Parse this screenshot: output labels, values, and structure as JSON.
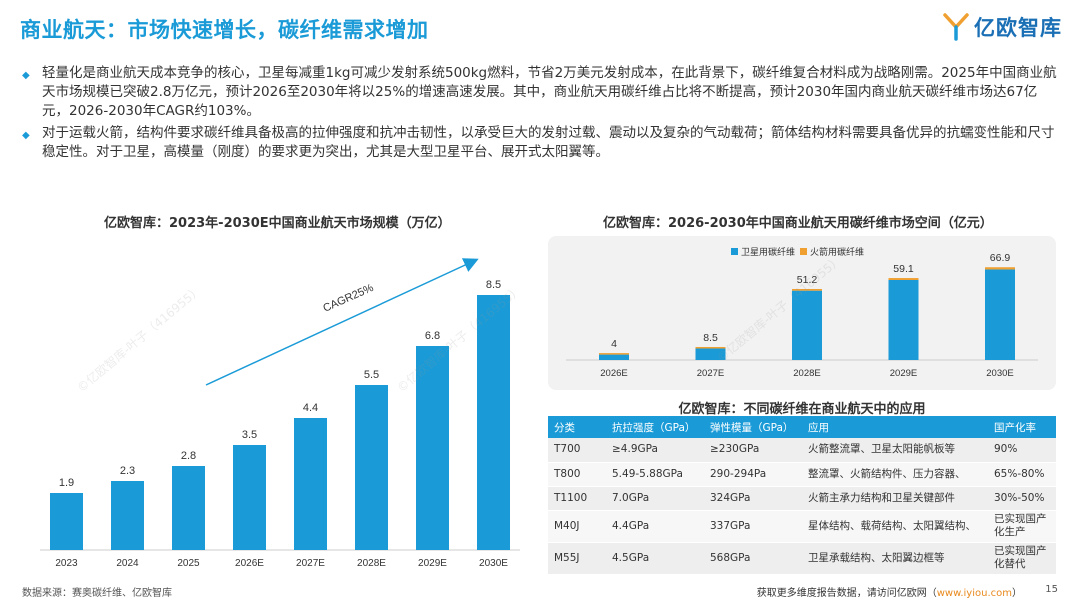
{
  "header": {
    "title": "商业航天：市场快速增长，碳纤维需求增加",
    "logo_text": "亿欧智库"
  },
  "bullets": [
    "轻量化是商业航天成本竞争的核心，卫星每减重1kg可减少发射系统500kg燃料，节省2万美元发射成本，在此背景下，碳纤维复合材料成为战略刚需。2025年中国商业航天市场规模已突破2.8万亿元，预计2026至2030年将以25%的增速高速发展。其中，商业航天用碳纤维占比将不断提高，预计2030年国内商业航天碳纤维市场达67亿元，2026-2030年CAGR约103%。",
    "对于运载火箭，结构件要求碳纤维具备极高的拉伸强度和抗冲击韧性，以承受巨大的发射过载、震动以及复杂的气动载荷；箭体结构材料需要具备优异的抗蠕变性能和尺寸稳定性。对于卫星，高模量（刚度）的要求更为突出，尤其是大型卫星平台、展开式太阳翼等。"
  ],
  "chart_data": [
    {
      "type": "bar",
      "title": "亿欧智库：2023年-2030E中国商业航天市场规模（万亿）",
      "categories": [
        "2023",
        "2024",
        "2025",
        "2026E",
        "2027E",
        "2028E",
        "2029E",
        "2030E"
      ],
      "values": [
        1.9,
        2.3,
        2.8,
        3.5,
        4.4,
        5.5,
        6.8,
        8.5
      ],
      "value_labels": [
        "1.9",
        "2.3",
        "2.8",
        "3.5",
        "4.4",
        "5.5",
        "6.8",
        "8.5"
      ],
      "annotation": "CAGR25%",
      "ylim": [
        0,
        9
      ],
      "color": "#1a9bd7"
    },
    {
      "type": "bar",
      "stacked": true,
      "title": "亿欧智库：2026-2030年中国商业航天用碳纤维市场空间（亿元）",
      "categories": [
        "2026E",
        "2027E",
        "2028E",
        "2029E",
        "2030E"
      ],
      "series": [
        {
          "name": "卫星用碳纤维",
          "values": [
            3.9,
            8.3,
            50.0,
            57.7,
            65.3
          ],
          "color": "#1a9bd7"
        },
        {
          "name": "火箭用碳纤维",
          "values": [
            0.1,
            0.2,
            1.2,
            1.4,
            1.6
          ],
          "color": "#f0a030"
        }
      ],
      "totals": [
        "4",
        "8.5",
        "51.2",
        "59.1",
        "66.9"
      ],
      "ylim": [
        0,
        75
      ]
    }
  ],
  "table": {
    "title": "亿欧智库：不同碳纤维在商业航天中的应用",
    "headers": [
      "分类",
      "抗拉强度（GPa）",
      "弹性模量（GPa）",
      "应用",
      "国产化率"
    ],
    "rows": [
      [
        "T700",
        "≥4.9GPa",
        "≥230GPa",
        "火箭整流罩、卫星太阳能帆板等",
        "90%"
      ],
      [
        "T800",
        "5.49-5.88GPa",
        "290-294Pa",
        "整流罩、火箭结构件、压力容器、",
        "65%-80%"
      ],
      [
        "T1100",
        "7.0GPa",
        "324GPa",
        "火箭主承力结构和卫星关键部件",
        "30%-50%"
      ],
      [
        "M40J",
        "4.4GPa",
        "337GPa",
        "星体结构、载荷结构、太阳翼结构、",
        "已实现国产化生产"
      ],
      [
        "M55J",
        "4.5GPa",
        "568GPa",
        "卫星承载结构、太阳翼边框等",
        "已实现国产化替代"
      ]
    ]
  },
  "footer": {
    "source": "数据来源：赛奥碳纤维、亿欧智库",
    "more_prefix": "获取更多维度报告数据，请访问亿欧网（",
    "url": "www.iyiou.com",
    "more_suffix": "）",
    "page": "15"
  },
  "watermark_text": "©亿欧智库-叶子（416955）",
  "colors": {
    "accent": "#1a9bd7",
    "orange": "#f0a030"
  }
}
